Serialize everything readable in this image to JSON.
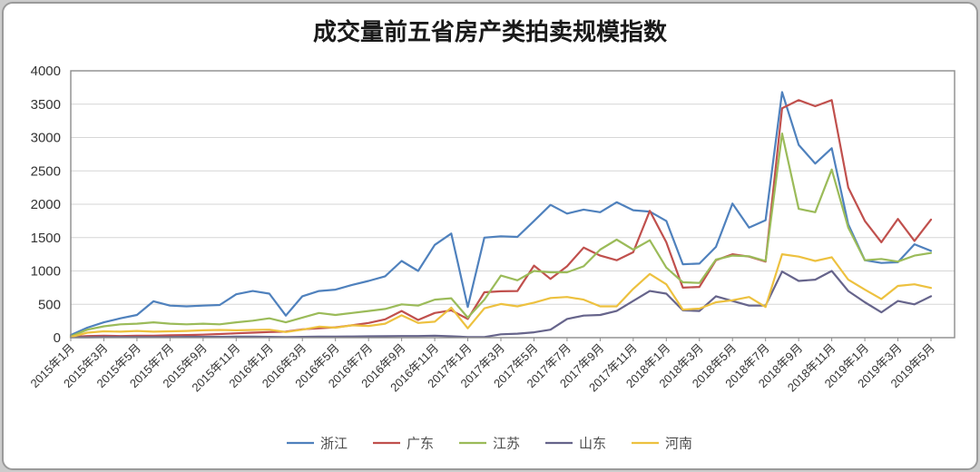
{
  "card": {
    "title": "成交量前五省房产类拍卖规模指数"
  },
  "chart_data": {
    "type": "line",
    "title": "成交量前五省房产类拍卖规模指数",
    "xlabel": "",
    "ylabel": "",
    "ylim": [
      0,
      4000
    ],
    "y_tick_labels": [
      "0",
      "500",
      "1000",
      "1500",
      "2000",
      "2500",
      "3000",
      "3500",
      "4000"
    ],
    "y_ticks": [
      0,
      500,
      1000,
      1500,
      2000,
      2500,
      3000,
      3500,
      4000
    ],
    "x_label_every": 2,
    "grid": "horizontal",
    "legend_position": "bottom",
    "months": [
      "2015年1月",
      "2015年2月",
      "2015年3月",
      "2015年4月",
      "2015年5月",
      "2015年6月",
      "2015年7月",
      "2015年8月",
      "2015年9月",
      "2015年10月",
      "2015年11月",
      "2015年12月",
      "2016年1月",
      "2016年2月",
      "2016年3月",
      "2016年4月",
      "2016年5月",
      "2016年6月",
      "2016年7月",
      "2016年8月",
      "2016年9月",
      "2016年10月",
      "2016年11月",
      "2016年12月",
      "2017年1月",
      "2017年2月",
      "2017年3月",
      "2017年4月",
      "2017年5月",
      "2017年6月",
      "2017年7月",
      "2017年8月",
      "2017年9月",
      "2017年10月",
      "2017年11月",
      "2017年12月",
      "2018年1月",
      "2018年2月",
      "2018年3月",
      "2018年4月",
      "2018年5月",
      "2018年6月",
      "2018年7月",
      "2018年8月",
      "2018年9月",
      "2018年10月",
      "2018年11月",
      "2018年12月",
      "2019年1月",
      "2019年2月",
      "2019年3月",
      "2019年4月",
      "2019年5月"
    ],
    "series": [
      {
        "id": "zhejiang",
        "name": "浙江",
        "color": "#4F81BD",
        "values": [
          40,
          150,
          230,
          290,
          340,
          545,
          480,
          470,
          480,
          490,
          650,
          700,
          660,
          330,
          620,
          700,
          720,
          790,
          850,
          920,
          1150,
          1000,
          1390,
          1560,
          460,
          1500,
          1520,
          1510,
          1750,
          1990,
          1860,
          1920,
          1880,
          2030,
          1910,
          1890,
          1750,
          1100,
          1110,
          1360,
          2010,
          1650,
          1760,
          3680,
          2890,
          2610,
          2840,
          1700,
          1160,
          1120,
          1130,
          1400,
          1300
        ]
      },
      {
        "id": "guangdong",
        "name": "广东",
        "color": "#C0504D",
        "values": [
          10,
          25,
          30,
          25,
          30,
          30,
          35,
          40,
          45,
          55,
          65,
          75,
          85,
          90,
          125,
          140,
          155,
          185,
          220,
          275,
          400,
          265,
          370,
          410,
          280,
          680,
          695,
          700,
          1080,
          880,
          1070,
          1350,
          1230,
          1160,
          1280,
          1900,
          1430,
          750,
          760,
          1160,
          1250,
          1215,
          1140,
          3440,
          3560,
          3470,
          3560,
          2250,
          1750,
          1430,
          1780,
          1450,
          1770
        ]
      },
      {
        "id": "jiangsu",
        "name": "江苏",
        "color": "#9BBB59",
        "values": [
          20,
          120,
          170,
          200,
          210,
          230,
          210,
          200,
          210,
          200,
          230,
          255,
          290,
          230,
          300,
          370,
          340,
          370,
          400,
          430,
          500,
          480,
          570,
          590,
          300,
          570,
          930,
          860,
          1000,
          980,
          980,
          1070,
          1320,
          1470,
          1320,
          1460,
          1050,
          830,
          820,
          1170,
          1230,
          1220,
          1150,
          3060,
          1930,
          1880,
          2520,
          1650,
          1160,
          1180,
          1140,
          1230,
          1270
        ]
      },
      {
        "id": "shandong",
        "name": "山东",
        "color": "#66648B",
        "values": [
          5,
          5,
          8,
          8,
          10,
          10,
          10,
          12,
          12,
          12,
          15,
          15,
          12,
          10,
          12,
          15,
          15,
          18,
          20,
          22,
          25,
          25,
          30,
          20,
          10,
          10,
          50,
          60,
          80,
          120,
          280,
          330,
          340,
          400,
          550,
          700,
          660,
          410,
          400,
          620,
          550,
          480,
          480,
          990,
          850,
          870,
          1000,
          700,
          530,
          380,
          550,
          500,
          620
        ]
      },
      {
        "id": "henan",
        "name": "河南",
        "color": "#EDC13F",
        "values": [
          10,
          75,
          95,
          90,
          100,
          90,
          95,
          100,
          110,
          115,
          110,
          115,
          120,
          85,
          120,
          165,
          150,
          185,
          175,
          210,
          335,
          220,
          240,
          450,
          140,
          440,
          505,
          470,
          525,
          595,
          610,
          570,
          470,
          470,
          730,
          955,
          800,
          420,
          435,
          530,
          560,
          610,
          460,
          1250,
          1215,
          1150,
          1205,
          870,
          720,
          580,
          775,
          800,
          745
        ]
      }
    ]
  }
}
